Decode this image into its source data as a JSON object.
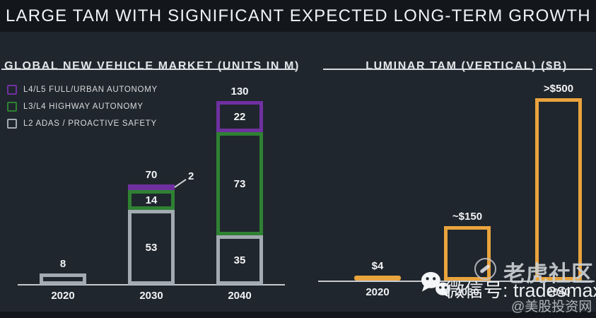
{
  "title": "LARGE TAM WITH SIGNIFICANT EXPECTED LONG-TERM GROWTH",
  "colors": {
    "background": "#20262d",
    "title_band": "#13171c",
    "purple": "#7030a0",
    "green": "#2f8133",
    "gray": "#a2aab2",
    "orange": "#e9a43d",
    "axis": "#c6cacf",
    "text": "#f2f4f6"
  },
  "chart_data": [
    {
      "type": "bar",
      "stacked": true,
      "title": "GLOBAL NEW VEHICLE MARKET (UNITS IN M)",
      "categories": [
        "2020",
        "2030",
        "2040"
      ],
      "legend": [
        {
          "key": "l4l5",
          "label": "L4/L5 FULL/URBAN AUTONOMY",
          "color": "#7030a0"
        },
        {
          "key": "l3l4",
          "label": "L3/L4 HIGHWAY AUTONOMY",
          "color": "#2f8133"
        },
        {
          "key": "l2",
          "label": "L2 ADAS / PROACTIVE SAFETY",
          "color": "#a2aab2"
        }
      ],
      "series": [
        {
          "key": "l2",
          "name": "L2 ADAS / PROACTIVE SAFETY",
          "values": [
            8,
            53,
            35
          ]
        },
        {
          "key": "l3l4",
          "name": "L3/L4 HIGHWAY AUTONOMY",
          "values": [
            0,
            14,
            73
          ]
        },
        {
          "key": "l4l5",
          "name": "L4/L5 FULL/URBAN AUTONOMY",
          "values": [
            0,
            2,
            22
          ]
        }
      ],
      "totals": [
        "8",
        "70",
        "130"
      ],
      "segment_labels": {
        "l2": [
          "",
          "53",
          "35"
        ],
        "l3l4": [
          "",
          "14",
          "73"
        ],
        "l4l5": [
          "",
          "",
          "22"
        ]
      },
      "segment_styles": {
        "l2": [
          "outline",
          "outline",
          "outline"
        ],
        "l3l4": [
          "none",
          "outline",
          "outline"
        ],
        "l4l5": [
          "none",
          "filled",
          "outline"
        ]
      },
      "callout": {
        "category": "2030",
        "series": "l4l5",
        "label": "2"
      },
      "ylim": [
        0,
        135
      ],
      "grid": false,
      "legend_position": "top-left"
    },
    {
      "type": "bar",
      "title": "LUMINAR TAM (VERTICAL) ($B)",
      "categories": [
        "2020",
        "2030",
        "2040"
      ],
      "values": [
        4,
        150,
        500
      ],
      "value_labels": [
        "$4",
        "~$150",
        ">$500"
      ],
      "bar_styles": [
        "filled",
        "outline",
        "outline"
      ],
      "color": "#e9a43d",
      "ylim": [
        0,
        540
      ],
      "grid": false
    }
  ],
  "watermark": {
    "wechat_text": "微信号: tradesmax",
    "community_text": "老虎社区",
    "handle_text": "@美股投资网"
  }
}
